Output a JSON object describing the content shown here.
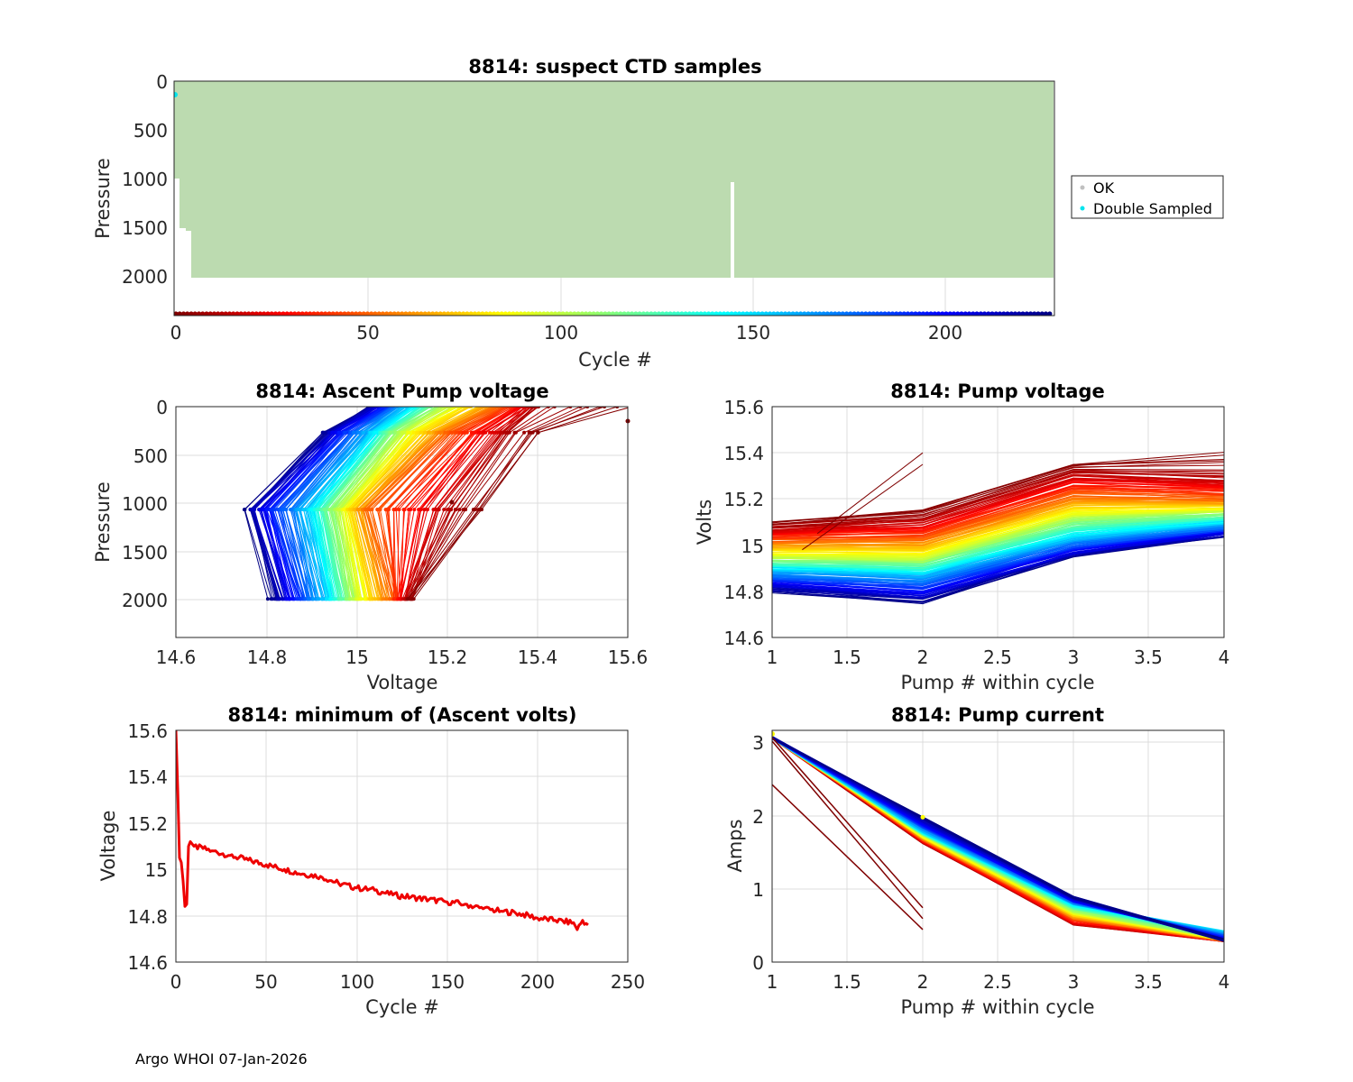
{
  "footer": "Argo WHOI 07-Jan-2026",
  "colors": {
    "ok": "#bcdbb0",
    "ok_legend": "#c0c0c0",
    "double": "#00e5ee",
    "minvolts": "#ee0000",
    "marker": "#ffff00",
    "grid": "#dcdcdc"
  },
  "chart_data": [
    {
      "id": "ctd",
      "type": "scatter",
      "title": "8814: suspect CTD samples",
      "xlabel": "Cycle #",
      "ylabel": "Pressure",
      "xlim": [
        0,
        229
      ],
      "ylim": [
        2400,
        0
      ],
      "xticks": [
        0,
        50,
        100,
        150,
        200
      ],
      "yticks": [
        0,
        500,
        1000,
        1500,
        2000
      ],
      "legend": [
        "OK",
        "Double Sampled"
      ],
      "ok_profile_depth": 2010,
      "early_cycles": [
        {
          "cycle": 1,
          "max_p": 1050
        },
        {
          "cycle": 2,
          "max_p": 1530
        },
        {
          "cycle": 3,
          "max_p": 1550
        },
        {
          "cycle": 4,
          "max_p": 1560
        }
      ],
      "gap_cycle": 145,
      "gap_top_p": 1030,
      "double_sampled": [
        {
          "cycle": 0,
          "p": 140
        }
      ],
      "cycle_marker_p": 2400
    },
    {
      "id": "ascent",
      "type": "line",
      "title": "8814: Ascent Pump voltage",
      "xlabel": "Voltage",
      "ylabel": "Pressure",
      "xlim": [
        14.6,
        15.6
      ],
      "ylim": [
        2400,
        0
      ],
      "xticks": [
        14.6,
        14.8,
        15,
        15.2,
        15.4,
        15.6
      ],
      "yticks": [
        0,
        500,
        1000,
        1500,
        2000
      ],
      "pump_pressures": [
        2000,
        1070,
        270,
        0
      ],
      "cycle_volts": [
        {
          "cycle": 1,
          "v": [
            15.12,
            15.28,
            15.4,
            15.6
          ]
        },
        {
          "cycle": 10,
          "v": [
            15.12,
            15.22,
            15.34,
            15.4
          ]
        },
        {
          "cycle": 50,
          "v": [
            15.08,
            15.03,
            15.2,
            15.32
          ]
        },
        {
          "cycle": 100,
          "v": [
            15.0,
            14.96,
            15.1,
            15.2
          ]
        },
        {
          "cycle": 150,
          "v": [
            14.94,
            14.9,
            15.04,
            15.12
          ]
        },
        {
          "cycle": 200,
          "v": [
            14.86,
            14.8,
            14.96,
            15.06
          ]
        },
        {
          "cycle": 228,
          "v": [
            14.81,
            14.76,
            14.93,
            15.03
          ]
        }
      ]
    },
    {
      "id": "pumpv",
      "type": "line",
      "title": "8814: Pump voltage",
      "xlabel": "Pump # within cycle",
      "ylabel": "Volts",
      "xlim": [
        1,
        4
      ],
      "ylim": [
        14.6,
        15.6
      ],
      "xticks": [
        1,
        1.5,
        2,
        2.5,
        3,
        3.5,
        4
      ],
      "yticks": [
        14.6,
        14.8,
        15,
        15.2,
        15.4,
        15.6
      ],
      "cycle_volts": [
        {
          "cycle": 1,
          "v": [
            15.1,
            15.15,
            15.35,
            15.4
          ]
        },
        {
          "cycle": 10,
          "v": [
            15.08,
            15.12,
            15.32,
            15.3
          ]
        },
        {
          "cycle": 50,
          "v": [
            15.02,
            15.03,
            15.22,
            15.2
          ]
        },
        {
          "cycle": 100,
          "v": [
            14.95,
            14.94,
            15.12,
            15.15
          ]
        },
        {
          "cycle": 150,
          "v": [
            14.9,
            14.88,
            15.04,
            15.1
          ]
        },
        {
          "cycle": 200,
          "v": [
            14.84,
            14.8,
            14.98,
            15.06
          ]
        },
        {
          "cycle": 228,
          "v": [
            14.8,
            14.75,
            14.95,
            15.04
          ]
        }
      ],
      "early_spikes": [
        {
          "from": [
            1.3,
            15.05
          ],
          "to": [
            2,
            15.4
          ]
        },
        {
          "from": [
            1.2,
            14.98
          ],
          "to": [
            2,
            15.35
          ]
        }
      ]
    },
    {
      "id": "minv",
      "type": "line",
      "title": "8814: minimum of (Ascent volts)",
      "xlabel": "Cycle #",
      "ylabel": "Voltage",
      "xlim": [
        0,
        250
      ],
      "ylim": [
        14.6,
        15.6
      ],
      "xticks": [
        0,
        50,
        100,
        150,
        200,
        250
      ],
      "yticks": [
        14.6,
        14.8,
        15,
        15.2,
        15.4,
        15.6
      ],
      "x": [
        0,
        1,
        2,
        3,
        4,
        5,
        6,
        7,
        8,
        10,
        15,
        20,
        30,
        40,
        50,
        60,
        70,
        80,
        90,
        100,
        110,
        120,
        130,
        140,
        150,
        160,
        170,
        180,
        190,
        200,
        210,
        220,
        222,
        225,
        228
      ],
      "y": [
        15.6,
        15.35,
        15.05,
        15.03,
        14.95,
        14.84,
        14.85,
        15.1,
        15.12,
        15.1,
        15.09,
        15.08,
        15.06,
        15.04,
        15.02,
        15.0,
        14.98,
        14.97,
        14.94,
        14.92,
        14.91,
        14.89,
        14.88,
        14.87,
        14.86,
        14.85,
        14.83,
        14.82,
        14.81,
        14.79,
        14.78,
        14.77,
        14.74,
        14.78,
        14.76
      ]
    },
    {
      "id": "pumpc",
      "type": "line",
      "title": "8814: Pump current",
      "xlabel": "Pump # within cycle",
      "ylabel": "Amps",
      "xlim": [
        1,
        4
      ],
      "ylim": [
        0,
        3.2
      ],
      "xticks": [
        1,
        1.5,
        2,
        2.5,
        3,
        3.5,
        4
      ],
      "yticks": [
        0,
        1,
        2,
        3
      ],
      "cycle_amps": [
        {
          "cycle": 10,
          "a": [
            3.1,
            1.65,
            0.52,
            0.3
          ]
        },
        {
          "cycle": 50,
          "a": [
            3.1,
            1.7,
            0.6,
            0.3
          ]
        },
        {
          "cycle": 100,
          "a": [
            3.1,
            1.75,
            0.7,
            0.32
          ]
        },
        {
          "cycle": 150,
          "a": [
            3.1,
            1.8,
            0.8,
            0.42
          ]
        },
        {
          "cycle": 200,
          "a": [
            3.1,
            1.9,
            0.85,
            0.32
          ]
        },
        {
          "cycle": 228,
          "a": [
            3.1,
            2.0,
            0.9,
            0.3
          ]
        }
      ],
      "early_lines": [
        {
          "a": [
            2.45,
            0.45
          ]
        },
        {
          "a": [
            3.1,
            0.75
          ]
        },
        {
          "a": [
            3.05,
            0.6
          ]
        }
      ]
    }
  ]
}
